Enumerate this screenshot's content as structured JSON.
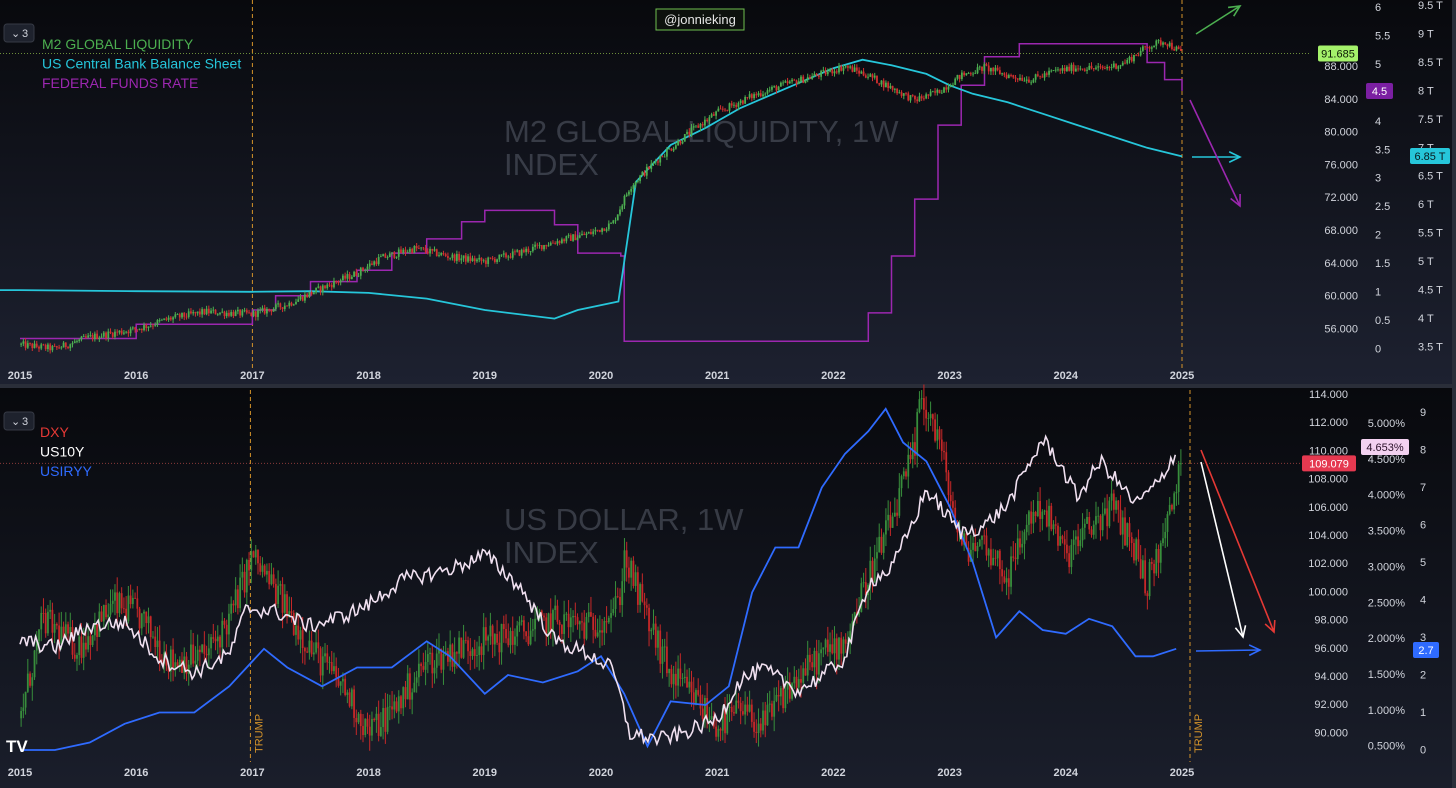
{
  "watermark_user": "@jonnieking",
  "logo_text": "TV",
  "colors": {
    "background_top": "#131722",
    "background_bottom": "#10131c",
    "m2": "#4caf50",
    "m2_down": "#d32f2f",
    "cb_balance": "#26c6da",
    "fed_funds": "#9c27b0",
    "dxy_up": "#388e3c",
    "dxy_down": "#c62828",
    "us10y": "#f0e0f0",
    "usiryy": "#2f6bff",
    "vline": "#d4932a",
    "arrow_red": "#e53935",
    "arrow_white": "#ffffff",
    "arrow_blue": "#2f6bff",
    "arrow_green": "#4caf50"
  },
  "x_axis": {
    "ticks": [
      "2015",
      "2016",
      "2017",
      "2018",
      "2019",
      "2020",
      "2021",
      "2022",
      "2023",
      "2024",
      "2025"
    ]
  },
  "top_panel": {
    "pane_index": "3",
    "watermark": [
      "M2 GLOBAL LIQUIDITY, 1W",
      "INDEX"
    ],
    "legend": [
      {
        "name": "M2 GLOBAL LIQUIDITY",
        "color": "#4caf50"
      },
      {
        "name": "US Central Bank Balance Sheet",
        "color": "#26c6da"
      },
      {
        "name": "FEDERAL FUNDS RATE",
        "color": "#9c27b0"
      }
    ],
    "vline_labels": [
      "",
      ""
    ],
    "axis_m2": [
      "88.000",
      "84.000",
      "80.000",
      "76.000",
      "72.000",
      "68.000",
      "64.000",
      "60.000",
      "56.000"
    ],
    "axis_ffr": [
      "6",
      "5.5",
      "5",
      "4.5",
      "4",
      "3.5",
      "3",
      "2.5",
      "2",
      "1.5",
      "1",
      "0.5",
      "0"
    ],
    "axis_bs": [
      "9.5 T",
      "9 T",
      "8.5 T",
      "8 T",
      "7.5 T",
      "7 T",
      "6.5 T",
      "6 T",
      "5.5 T",
      "5 T",
      "4.5 T",
      "4 T",
      "3.5 T"
    ],
    "badges": {
      "m2": "91.685",
      "ffr": "4.5",
      "bs": "6.85 T"
    }
  },
  "bottom_panel": {
    "pane_index": "3",
    "watermark": [
      "US DOLLAR, 1W",
      "INDEX"
    ],
    "legend": [
      {
        "name": "DXY",
        "color": "#e53935"
      },
      {
        "name": "US10Y",
        "color": "#ffffff"
      },
      {
        "name": "USIRYY",
        "color": "#2f6bff"
      }
    ],
    "vline_labels": [
      "TRUMP",
      "TRUMP"
    ],
    "axis_dxy": [
      "114.000",
      "112.000",
      "110.000",
      "108.000",
      "106.000",
      "104.000",
      "102.000",
      "100.000",
      "98.000",
      "96.000",
      "94.000",
      "92.000",
      "90.000"
    ],
    "axis_us10y": [
      "5.000%",
      "4.500%",
      "4.000%",
      "3.500%",
      "3.000%",
      "2.500%",
      "2.000%",
      "1.500%",
      "1.000%",
      "0.500%"
    ],
    "axis_cpi": [
      "9",
      "8",
      "7",
      "6",
      "5",
      "4",
      "3",
      "2",
      "1",
      "0"
    ],
    "badges": {
      "us10y": "4.653%",
      "dxy": "109.079",
      "cpi": "2.7"
    }
  },
  "chart_data": [
    {
      "type": "line",
      "series": [
        {
          "name": "M2 GLOBAL LIQUIDITY",
          "x": [
            2015.0,
            2015.3,
            2015.6,
            2016.0,
            2016.3,
            2016.6,
            2017.0,
            2017.3,
            2017.6,
            2017.9,
            2018.1,
            2018.4,
            2018.7,
            2019.0,
            2019.3,
            2019.6,
            2019.9,
            2020.1,
            2020.25,
            2020.5,
            2020.8,
            2021.0,
            2021.3,
            2021.6,
            2021.9,
            2022.1,
            2022.3,
            2022.5,
            2022.7,
            2022.9,
            2023.1,
            2023.3,
            2023.5,
            2023.7,
            2023.9,
            2024.1,
            2024.3,
            2024.5,
            2024.7,
            2024.85,
            2025.0
          ],
          "values": [
            56.3,
            55.8,
            57.2,
            58.2,
            59.5,
            60.3,
            60.0,
            61.2,
            63.2,
            65.0,
            66.8,
            68.0,
            67.0,
            66.4,
            67.5,
            68.8,
            69.8,
            71.0,
            75.5,
            79.0,
            82.5,
            84.5,
            86.5,
            88.0,
            89.2,
            90.1,
            89.0,
            87.5,
            86.0,
            87.0,
            89.0,
            90.0,
            89.0,
            88.5,
            89.5,
            90.0,
            89.8,
            90.5,
            92.5,
            93.2,
            91.685
          ]
        },
        {
          "name": "US Central Bank Balance Sheet",
          "x": [
            2015.0,
            2016.0,
            2017.0,
            2017.5,
            2018.0,
            2018.5,
            2019.0,
            2019.6,
            2019.8,
            2020.15,
            2020.3,
            2020.6,
            2020.9,
            2021.2,
            2021.6,
            2022.0,
            2022.25,
            2022.5,
            2022.8,
            2023.0,
            2023.2,
            2023.5,
            2023.8,
            2024.1,
            2024.4,
            2024.7,
            2025.0
          ],
          "values": [
            4.5,
            4.48,
            4.47,
            4.48,
            4.45,
            4.35,
            4.15,
            4.0,
            4.15,
            4.3,
            6.4,
            7.05,
            7.35,
            7.7,
            8.05,
            8.4,
            8.55,
            8.45,
            8.3,
            8.1,
            7.95,
            7.8,
            7.6,
            7.4,
            7.2,
            7.0,
            6.85
          ]
        },
        {
          "name": "FEDERAL FUNDS RATE",
          "x": [
            2015.0,
            2015.9,
            2016.0,
            2016.9,
            2017.0,
            2017.2,
            2017.5,
            2017.9,
            2018.2,
            2018.5,
            2018.8,
            2019.0,
            2019.4,
            2019.6,
            2019.8,
            2020.17,
            2020.2,
            2021.0,
            2022.15,
            2022.3,
            2022.5,
            2022.7,
            2022.9,
            2023.1,
            2023.3,
            2023.6,
            2024.65,
            2024.7,
            2024.85,
            2025.0
          ],
          "values": [
            0.15,
            0.15,
            0.4,
            0.4,
            0.65,
            0.9,
            1.15,
            1.35,
            1.65,
            1.9,
            2.2,
            2.4,
            2.4,
            2.15,
            1.65,
            1.6,
            0.1,
            0.1,
            0.1,
            0.6,
            1.6,
            2.6,
            3.9,
            4.6,
            5.1,
            5.33,
            5.33,
            5.0,
            4.7,
            4.5
          ]
        }
      ]
    },
    {
      "type": "line",
      "series": [
        {
          "name": "DXY",
          "x": [
            2015.0,
            2015.2,
            2015.5,
            2015.8,
            2016.0,
            2016.3,
            2016.6,
            2016.8,
            2017.0,
            2017.2,
            2017.5,
            2017.8,
            2018.0,
            2018.2,
            2018.5,
            2018.8,
            2019.0,
            2019.3,
            2019.6,
            2019.9,
            2020.15,
            2020.2,
            2020.4,
            2020.6,
            2020.8,
            2021.0,
            2021.2,
            2021.4,
            2021.6,
            2021.9,
            2022.1,
            2022.3,
            2022.5,
            2022.7,
            2022.75,
            2022.9,
            2023.1,
            2023.3,
            2023.5,
            2023.7,
            2023.8,
            2024.0,
            2024.2,
            2024.4,
            2024.6,
            2024.7,
            2024.85,
            2025.0
          ],
          "values": [
            91.0,
            98.0,
            96.0,
            99.0,
            98.5,
            95.0,
            95.5,
            98.0,
            102.5,
            100.0,
            96.0,
            93.0,
            90.0,
            91.5,
            95.0,
            96.0,
            96.5,
            97.0,
            98.0,
            97.5,
            99.0,
            102.5,
            98.0,
            94.0,
            92.5,
            90.5,
            91.5,
            90.5,
            93.0,
            95.5,
            96.5,
            101.0,
            105.0,
            110.0,
            114.0,
            111.0,
            103.0,
            103.5,
            101.0,
            105.5,
            106.0,
            102.5,
            104.5,
            106.0,
            103.0,
            100.5,
            104.0,
            109.079
          ]
        },
        {
          "name": "US10Y",
          "x": [
            2015.0,
            2015.3,
            2015.6,
            2015.9,
            2016.2,
            2016.5,
            2016.8,
            2016.95,
            2017.2,
            2017.5,
            2017.8,
            2018.0,
            2018.3,
            2018.6,
            2018.8,
            2019.0,
            2019.3,
            2019.6,
            2019.9,
            2020.1,
            2020.25,
            2020.5,
            2020.7,
            2021.0,
            2021.2,
            2021.4,
            2021.7,
            2021.9,
            2022.1,
            2022.3,
            2022.5,
            2022.7,
            2022.8,
            2022.95,
            2023.1,
            2023.3,
            2023.5,
            2023.8,
            2023.9,
            2024.1,
            2024.3,
            2024.6,
            2024.8,
            2024.95
          ],
          "values": [
            2.0,
            1.9,
            2.2,
            2.25,
            1.75,
            1.55,
            1.8,
            2.45,
            2.4,
            2.2,
            2.35,
            2.5,
            2.85,
            2.95,
            3.05,
            3.2,
            2.75,
            2.0,
            1.8,
            1.6,
            0.7,
            0.62,
            0.7,
            0.9,
            1.45,
            1.6,
            1.3,
            1.5,
            1.75,
            2.8,
            3.0,
            3.7,
            4.1,
            3.8,
            3.5,
            3.6,
            3.9,
            4.8,
            4.6,
            4.0,
            4.5,
            3.9,
            4.2,
            4.653
          ]
        },
        {
          "name": "USIRYY",
          "x": [
            2015.0,
            2015.3,
            2015.6,
            2015.9,
            2016.2,
            2016.5,
            2016.8,
            2017.1,
            2017.3,
            2017.6,
            2017.9,
            2018.2,
            2018.5,
            2018.7,
            2019.0,
            2019.2,
            2019.5,
            2019.8,
            2020.0,
            2020.2,
            2020.4,
            2020.6,
            2020.9,
            2021.1,
            2021.3,
            2021.5,
            2021.7,
            2021.9,
            2022.1,
            2022.3,
            2022.45,
            2022.6,
            2022.8,
            2023.0,
            2023.2,
            2023.4,
            2023.6,
            2023.8,
            2024.0,
            2024.2,
            2024.4,
            2024.6,
            2024.75,
            2024.95
          ],
          "values": [
            0.0,
            0.0,
            0.2,
            0.7,
            1.0,
            1.0,
            1.7,
            2.7,
            2.2,
            1.7,
            2.2,
            2.2,
            2.9,
            2.5,
            1.5,
            2.0,
            1.8,
            2.1,
            2.5,
            1.5,
            0.1,
            1.3,
            1.2,
            1.7,
            4.2,
            5.4,
            5.4,
            7.0,
            7.9,
            8.5,
            9.1,
            8.2,
            7.7,
            6.5,
            5.0,
            3.0,
            3.7,
            3.2,
            3.1,
            3.5,
            3.3,
            2.5,
            2.5,
            2.7
          ]
        }
      ]
    }
  ]
}
